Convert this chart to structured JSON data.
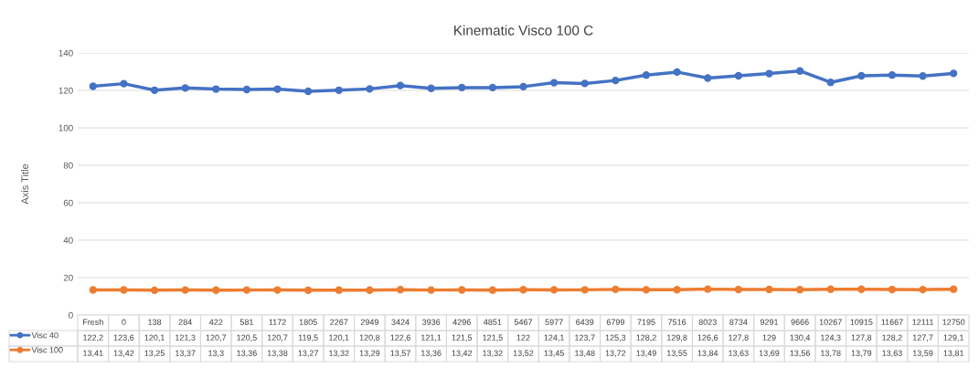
{
  "chart_data": {
    "type": "line",
    "title": "Kinematic Visco 100 C",
    "ylabel": "Axis Title",
    "categories": [
      "Fresh",
      "0",
      "138",
      "284",
      "422",
      "581",
      "1172",
      "1805",
      "2267",
      "2949",
      "3424",
      "3936",
      "4296",
      "4851",
      "5467",
      "5977",
      "6439",
      "6799",
      "7195",
      "7516",
      "8023",
      "8734",
      "9291",
      "9666",
      "10267",
      "10915",
      "11667",
      "12111",
      "12750"
    ],
    "series": [
      {
        "name": "Visc 40",
        "color": "#4472c4",
        "values": [
          122.2,
          123.6,
          120.1,
          121.3,
          120.7,
          120.5,
          120.7,
          119.5,
          120.1,
          120.8,
          122.6,
          121.1,
          121.5,
          121.5,
          122,
          124.1,
          123.7,
          125.3,
          128.2,
          129.8,
          126.6,
          127.8,
          129,
          130.4,
          124.3,
          127.8,
          128.2,
          127.7,
          129.1
        ],
        "value_labels": [
          "122,2",
          "123,6",
          "120,1",
          "121,3",
          "120,7",
          "120,5",
          "120,7",
          "119,5",
          "120,1",
          "120,8",
          "122,6",
          "121,1",
          "121,5",
          "121,5",
          "122",
          "124,1",
          "123,7",
          "125,3",
          "128,2",
          "129,8",
          "126,6",
          "127,8",
          "129",
          "130,4",
          "124,3",
          "127,8",
          "128,2",
          "127,7",
          "129,1"
        ]
      },
      {
        "name": "Visc 100",
        "color": "#ed7d31",
        "values": [
          13.41,
          13.42,
          13.25,
          13.37,
          13.3,
          13.36,
          13.38,
          13.27,
          13.32,
          13.29,
          13.57,
          13.36,
          13.42,
          13.32,
          13.52,
          13.45,
          13.48,
          13.72,
          13.49,
          13.55,
          13.84,
          13.63,
          13.69,
          13.56,
          13.78,
          13.79,
          13.63,
          13.59,
          13.81
        ],
        "value_labels": [
          "13,41",
          "13,42",
          "13,25",
          "13,37",
          "13,3",
          "13,36",
          "13,38",
          "13,27",
          "13,32",
          "13,29",
          "13,57",
          "13,36",
          "13,42",
          "13,32",
          "13,52",
          "13,45",
          "13,48",
          "13,72",
          "13,49",
          "13,55",
          "13,84",
          "13,63",
          "13,69",
          "13,56",
          "13,78",
          "13,79",
          "13,63",
          "13,59",
          "13,81"
        ]
      }
    ],
    "ylim": [
      0,
      140
    ],
    "yticks": [
      0,
      20,
      40,
      60,
      80,
      100,
      120,
      140
    ],
    "grid": "y",
    "legend": "bottom left",
    "marker": "circle",
    "line_style": "solid"
  }
}
